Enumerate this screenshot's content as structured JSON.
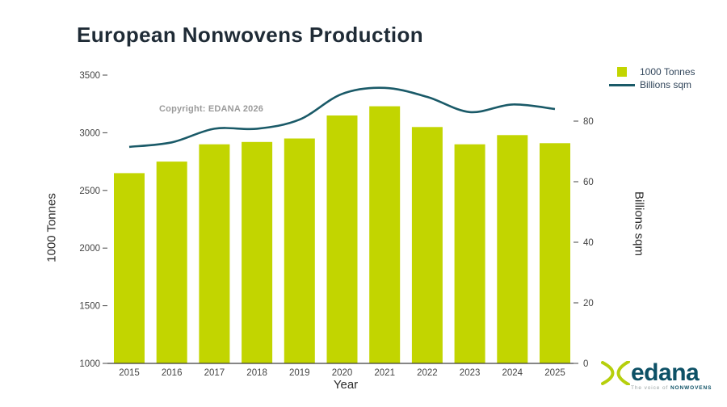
{
  "title": {
    "text": "European Nonwovens Production",
    "color": "#1f2b36"
  },
  "annotation": {
    "text": "Copyright: EDANA 2026",
    "color": "#9a9a9a"
  },
  "legend": {
    "position": "top-right",
    "text_color": "#33475c",
    "items": [
      {
        "label": "1000 Tonnes",
        "marker": "square",
        "color": "#c2d500"
      },
      {
        "label": "Billions sqm",
        "marker": "line",
        "color": "#1a5a68"
      }
    ]
  },
  "chart_data": {
    "type": "bar",
    "title": "European Nonwovens Production",
    "categories": [
      "2015",
      "2016",
      "2017",
      "2018",
      "2019",
      "2020",
      "2021",
      "2022",
      "2023",
      "2024",
      "2025"
    ],
    "series": [
      {
        "name": "1000 Tonnes",
        "type": "bar",
        "axis": "left",
        "color": "#c2d500",
        "values": [
          2650,
          2750,
          2900,
          2920,
          2950,
          3150,
          3230,
          3050,
          2900,
          2980,
          2910
        ]
      },
      {
        "name": "Billions sqm",
        "type": "line",
        "axis": "right",
        "color": "#1a5a68",
        "values": [
          71.5,
          73,
          77.5,
          77.5,
          80.5,
          89,
          91,
          88,
          83,
          85.5,
          84
        ]
      }
    ],
    "xlabel": "Year",
    "ylabel_left": "1000 Tonnes",
    "ylabel_right": "Billions sqm",
    "yticks_left": [
      1000,
      1500,
      2000,
      2500,
      3000,
      3500
    ],
    "yticks_right": [
      0,
      20,
      40,
      60,
      80
    ],
    "ylim_left": [
      1000,
      3500
    ],
    "ylim_right": [
      0,
      95
    ],
    "grid": false,
    "legend_position": "top-right"
  },
  "axis": {
    "tick_color": "#444444",
    "line_color": "#3d3d3d"
  },
  "logo": {
    "name": "edana",
    "tagline_prefix": "The voice of",
    "tagline_bold": "NONWOVENS",
    "text_color": "#0d5166",
    "swoosh_color": "#b6cf0c"
  }
}
